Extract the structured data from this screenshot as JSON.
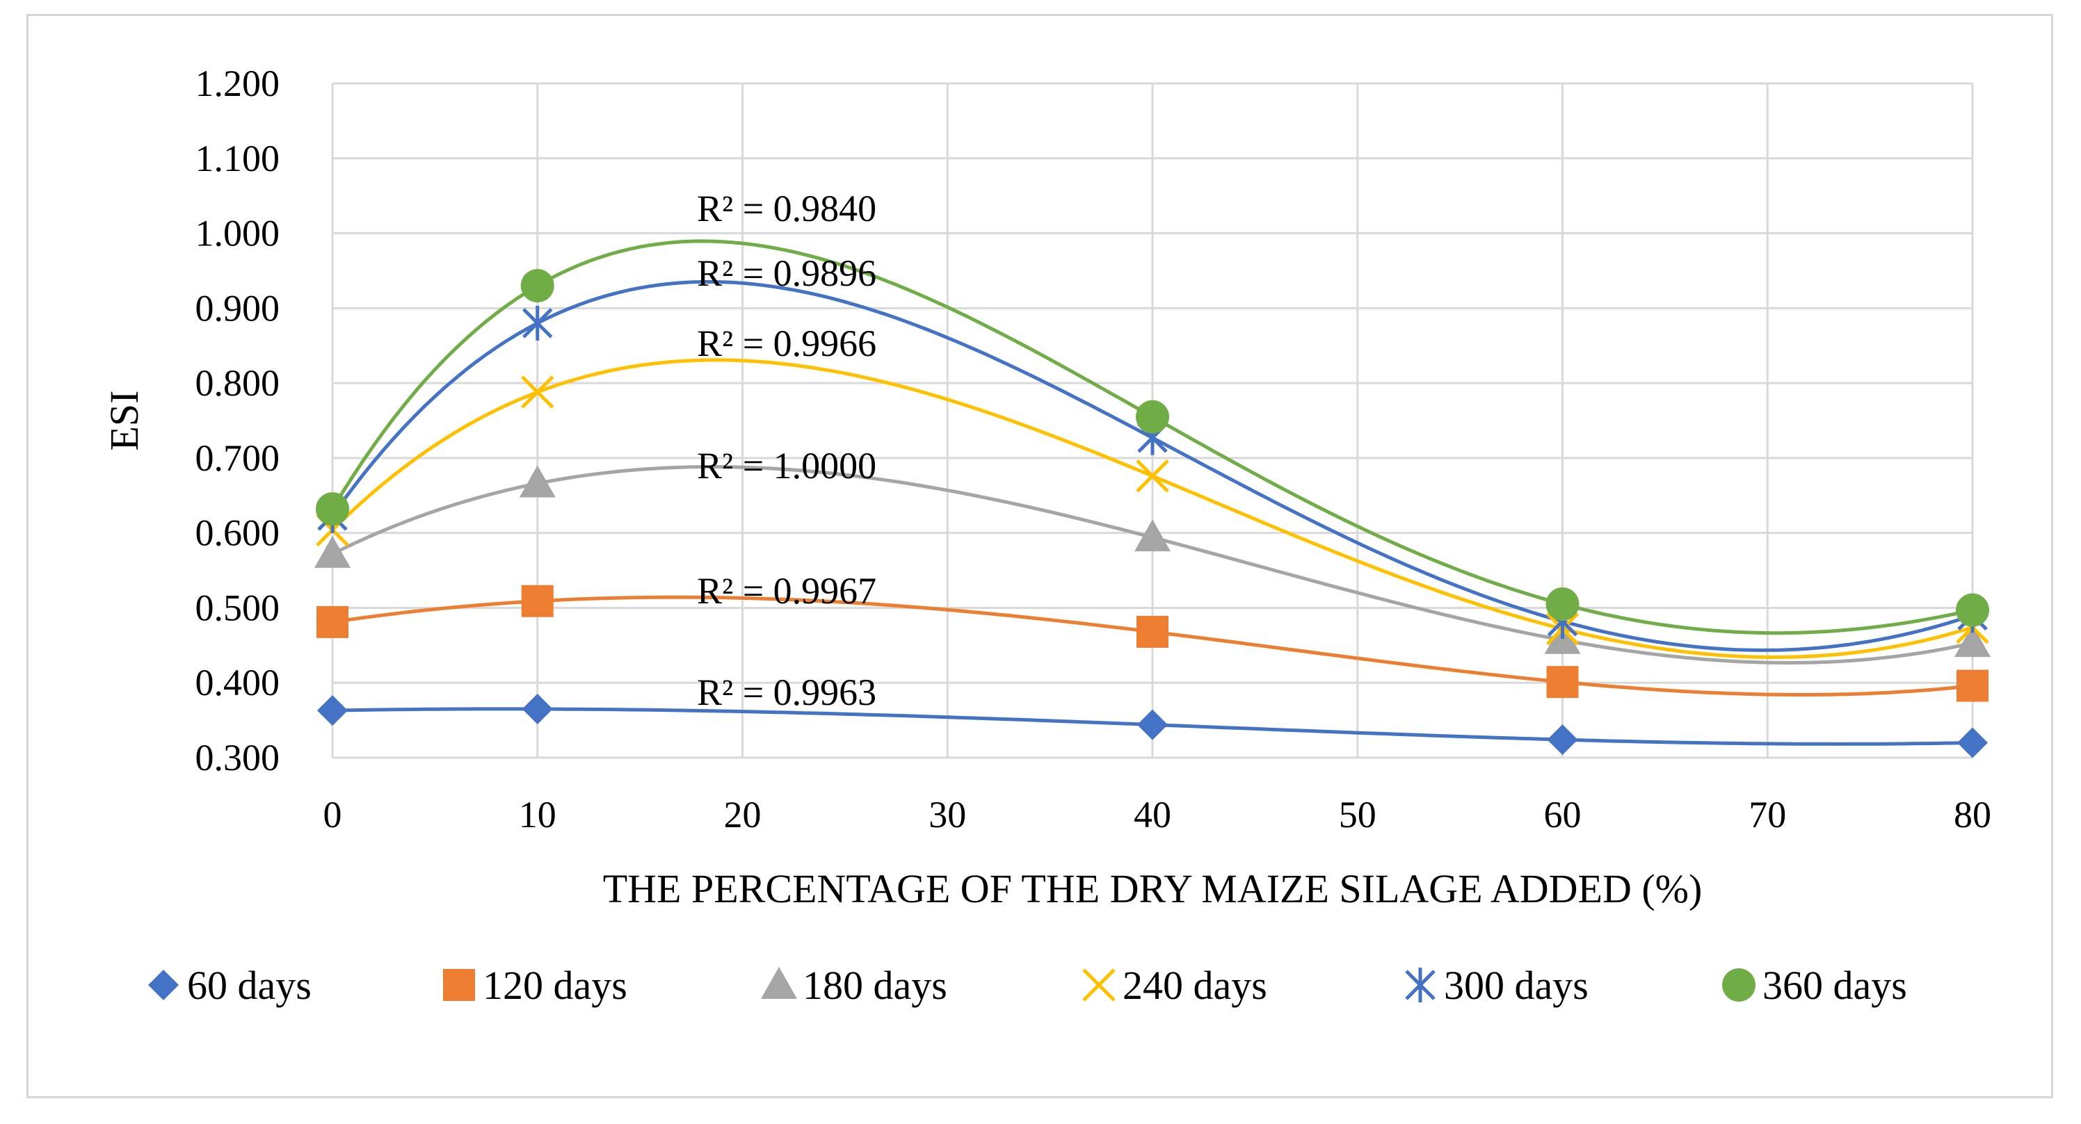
{
  "chart_data": {
    "type": "scatter",
    "title": "",
    "xlabel": "THE PERCENTAGE OF THE DRY MAIZE SILAGE ADDED (%)",
    "ylabel": "ESI",
    "xlim": [
      0,
      80
    ],
    "ylim": [
      0.3,
      1.2
    ],
    "xticks": [
      "0",
      "10",
      "20",
      "30",
      "40",
      "50",
      "60",
      "70",
      "80"
    ],
    "yticks": [
      "0.300",
      "0.400",
      "0.500",
      "0.600",
      "0.700",
      "0.800",
      "0.900",
      "1.000",
      "1.100",
      "1.200"
    ],
    "grid": true,
    "legend_position": "bottom",
    "x": [
      0,
      10,
      40,
      60,
      80
    ],
    "series": [
      {
        "name": "60 days",
        "marker": "diamond",
        "color": "#4472C4",
        "values": [
          0.363,
          0.365,
          0.344,
          0.324,
          0.32
        ],
        "r2": "R² = 0.9963"
      },
      {
        "name": "120 days",
        "marker": "square",
        "color": "#ED7D31",
        "values": [
          0.481,
          0.509,
          0.468,
          0.401,
          0.396
        ],
        "r2": "R² = 0.9967"
      },
      {
        "name": "180 days",
        "marker": "triangle",
        "color": "#A5A5A5",
        "values": [
          0.572,
          0.666,
          0.594,
          0.457,
          0.453
        ],
        "r2": "R² = 1.0000"
      },
      {
        "name": "240 days",
        "marker": "x",
        "color": "#FFC000",
        "values": [
          0.604,
          0.788,
          0.676,
          0.472,
          0.474
        ],
        "r2": "R² = 0.9966"
      },
      {
        "name": "300 days",
        "marker": "star",
        "color": "#4472C4",
        "values": [
          0.623,
          0.88,
          0.727,
          0.482,
          0.49
        ],
        "r2": "R² = 0.9896"
      },
      {
        "name": "360 days",
        "marker": "circle",
        "color": "#70AD47",
        "values": [
          0.632,
          0.93,
          0.755,
          0.505,
          0.497
        ],
        "r2": "R² = 0.9840"
      }
    ],
    "trend_colors": {
      "60 days": "#4472C4",
      "120 days": "#ED7D31",
      "180 days": "#A5A5A5",
      "240 days": "#FFC000",
      "300 days": "#4472C4",
      "360 days": "#70AD47"
    }
  }
}
